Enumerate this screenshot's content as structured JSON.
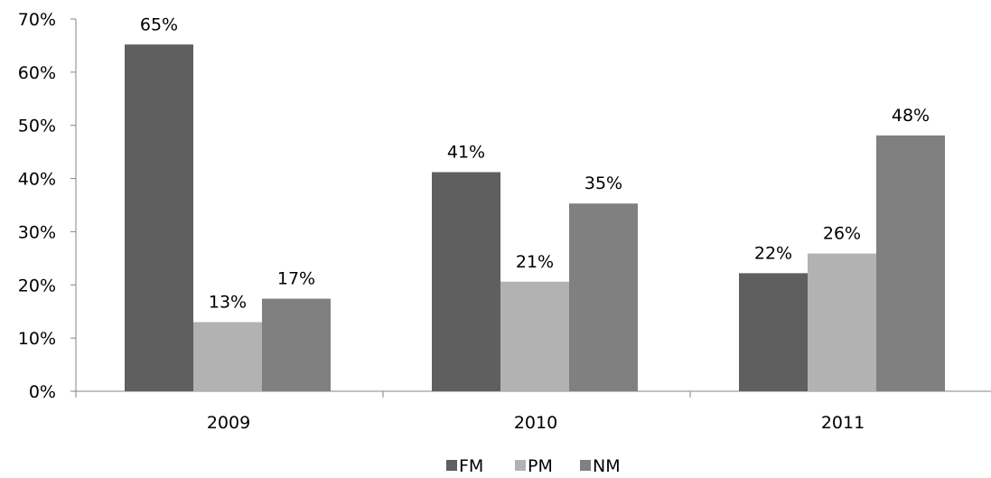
{
  "chart_data": {
    "type": "bar",
    "categories": [
      "2009",
      "2010",
      "2011"
    ],
    "series": [
      {
        "name": "FM",
        "values": [
          65,
          41,
          22
        ],
        "labels": [
          "65%",
          "41%",
          "22%"
        ],
        "color": "#5f5f5f"
      },
      {
        "name": "PM",
        "values": [
          13,
          21,
          26
        ],
        "labels": [
          "13%",
          "21%",
          "26%"
        ],
        "color": "#b2b2b2"
      },
      {
        "name": "NM",
        "values": [
          17,
          35,
          48
        ],
        "labels": [
          "17%",
          "35%",
          "48%"
        ],
        "color": "#808080"
      }
    ],
    "plotted_values": [
      [
        65.2,
        41.2,
        22.2
      ],
      [
        13.0,
        20.6,
        25.9
      ],
      [
        17.4,
        35.3,
        48.1
      ]
    ],
    "yticks": [
      "0%",
      "10%",
      "20%",
      "30%",
      "40%",
      "50%",
      "60%",
      "70%"
    ],
    "ylim": [
      0,
      70
    ],
    "title": "",
    "xlabel": "",
    "ylabel": "",
    "grid": false,
    "legend_position": "bottom"
  }
}
